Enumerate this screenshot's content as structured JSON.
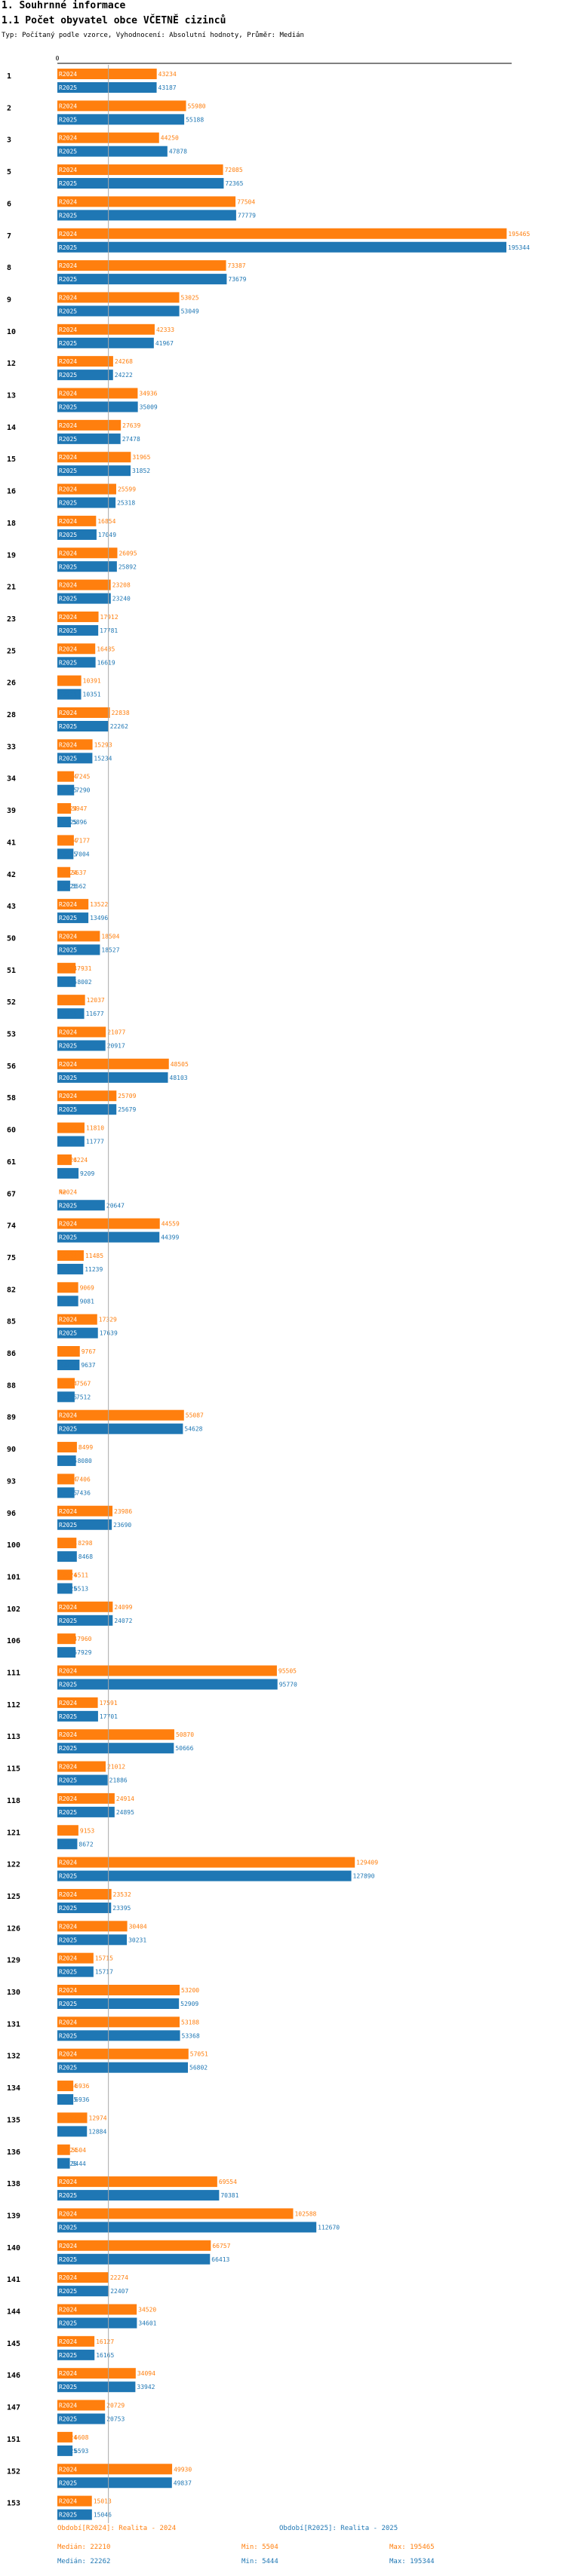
{
  "header": {
    "section": "1. Souhrnné informace",
    "title": "1.1 Počet obyvatel obce VČETNĚ cizinců",
    "subtitle": "Typ: Počítaný podle vzorce, Vyhodnocení: Absolutní hodnoty, Průměr: Medián"
  },
  "colors": {
    "r2024": "#ff7f0e",
    "r2025": "#1f77b4",
    "median": "#aaaaaa"
  },
  "chart_data": {
    "type": "bar",
    "orientation": "horizontal",
    "xlim": [
      0,
      196000
    ],
    "x_tick_label": "0",
    "median_value": 22210,
    "categories": [
      "1",
      "2",
      "3",
      "5",
      "6",
      "7",
      "8",
      "9",
      "10",
      "12",
      "13",
      "14",
      "15",
      "16",
      "18",
      "19",
      "21",
      "23",
      "25",
      "26",
      "28",
      "33",
      "34",
      "39",
      "41",
      "42",
      "43",
      "50",
      "51",
      "52",
      "53",
      "56",
      "58",
      "60",
      "61",
      "67",
      "74",
      "75",
      "82",
      "85",
      "86",
      "88",
      "89",
      "90",
      "93",
      "96",
      "100",
      "101",
      "102",
      "106",
      "111",
      "112",
      "113",
      "115",
      "118",
      "121",
      "122",
      "125",
      "126",
      "129",
      "130",
      "131",
      "132",
      "134",
      "135",
      "136",
      "138",
      "139",
      "140",
      "141",
      "144",
      "145",
      "146",
      "147",
      "151",
      "152",
      "153"
    ],
    "series": [
      {
        "name": "R2024",
        "values": [
          43234,
          55980,
          44250,
          72085,
          77504,
          195465,
          73387,
          53025,
          42333,
          24268,
          34936,
          27639,
          31965,
          25599,
          16854,
          26095,
          23208,
          17912,
          16485,
          10391,
          22838,
          15293,
          7245,
          5947,
          7177,
          5637,
          13522,
          18504,
          7931,
          12037,
          21077,
          48505,
          25709,
          11810,
          6224,
          null,
          44559,
          11485,
          9069,
          17329,
          9767,
          7567,
          55087,
          8499,
          7406,
          23986,
          8298,
          6511,
          24099,
          7960,
          95505,
          17591,
          50870,
          21012,
          24914,
          9153,
          129409,
          23532,
          30404,
          15715,
          53200,
          53188,
          57051,
          6936,
          12974,
          5504,
          69554,
          102588,
          66757,
          22274,
          34520,
          16127,
          34094,
          20729,
          6608,
          49930,
          15013
        ],
        "labels": [
          "43234",
          "55980",
          "44250",
          "72085",
          "77504",
          "195465",
          "73387",
          "53025",
          "42333",
          "24268",
          "34936",
          "27639",
          "31965",
          "25599",
          "16854",
          "26095",
          "23208",
          "17912",
          "16485",
          "10391",
          "22838",
          "15293",
          "7245",
          "5947",
          "7177",
          "5637",
          "13522",
          "18504",
          "7931",
          "12037",
          "21077",
          "48505",
          "25709",
          "11810",
          "6224",
          "Ne",
          "44559",
          "11485",
          "9069",
          "17329",
          "9767",
          "7567",
          "55087",
          "8499",
          "7406",
          "23986",
          "8298",
          "6511",
          "24099",
          "7960",
          "95505",
          "17591",
          "50870",
          "21012",
          "24914",
          "9153",
          "129409",
          "23532",
          "30404",
          "15715",
          "53200",
          "53188",
          "57051",
          "6936",
          "12974",
          "5504",
          "69554",
          "102588",
          "66757",
          "22274",
          "34520",
          "16127",
          "34094",
          "20729",
          "6608",
          "49930",
          "15013"
        ]
      },
      {
        "name": "R2025",
        "values": [
          43187,
          55188,
          47878,
          72365,
          77779,
          195344,
          73679,
          53049,
          41967,
          24222,
          35009,
          27478,
          31852,
          25318,
          17049,
          25892,
          23240,
          17781,
          16619,
          10351,
          22262,
          15234,
          7290,
          5896,
          7004,
          5562,
          13496,
          18527,
          8002,
          11677,
          20917,
          48103,
          25679,
          11777,
          9209,
          20647,
          44399,
          11239,
          9081,
          17639,
          9637,
          7512,
          54628,
          8080,
          7436,
          23690,
          8468,
          6513,
          24072,
          7929,
          95770,
          17701,
          50666,
          21886,
          24895,
          8672,
          127890,
          23395,
          30231,
          15717,
          52909,
          53368,
          56802,
          6936,
          12884,
          5444,
          70381,
          112670,
          66413,
          22407,
          34601,
          16165,
          33942,
          20753,
          6593,
          49837,
          15046
        ],
        "labels": [
          "43187",
          "55188",
          "47878",
          "72365",
          "77779",
          "195344",
          "73679",
          "53049",
          "41967",
          "24222",
          "35009",
          "27478",
          "31852",
          "25318",
          "17049",
          "25892",
          "23240",
          "17781",
          "16619",
          "10351",
          "22262",
          "15234",
          "7290",
          "5896",
          "7004",
          "5562",
          "13496",
          "18527",
          "8002",
          "11677",
          "20917",
          "48103",
          "25679",
          "11777",
          "9209",
          "20647",
          "44399",
          "11239",
          "9081",
          "17639",
          "9637",
          "7512",
          "54628",
          "8080",
          "7436",
          "23690",
          "8468",
          "6513",
          "24072",
          "7929",
          "95770",
          "17701",
          "50666",
          "21886",
          "24895",
          "8672",
          "127890",
          "23395",
          "30231",
          "15717",
          "52909",
          "53368",
          "56802",
          "6936",
          "12884",
          "5444",
          "70381",
          "112670",
          "66413",
          "22407",
          "34601",
          "16165",
          "33942",
          "20753",
          "6593",
          "49837",
          "15046"
        ]
      }
    ]
  },
  "footer": {
    "col1_title": "Období[R2024]: Realita - 2024",
    "col2_title": "Období[R2025]: Realita - 2025",
    "r2024_median": "Medián: 22210",
    "r2024_min": "Min: 5504",
    "r2024_max": "Max: 195465",
    "r2025_median": "Medián: 22262",
    "r2025_min": "Min: 5444",
    "r2025_max": "Max: 195344"
  }
}
